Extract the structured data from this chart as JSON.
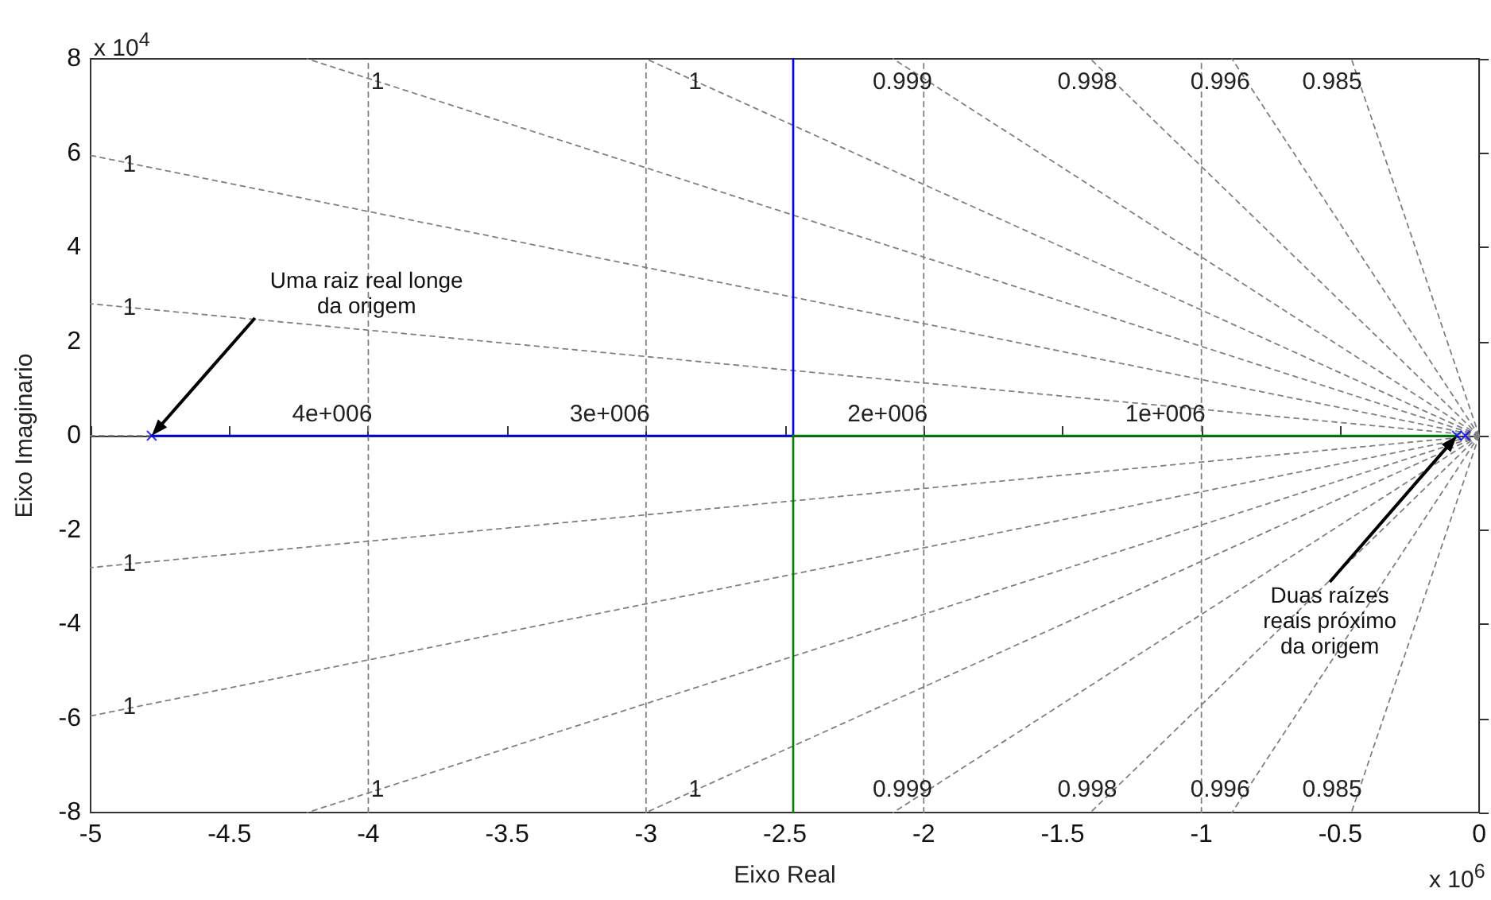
{
  "chart_data": {
    "type": "line",
    "xlabel": "Eixo Real",
    "ylabel": "Eixo Imaginario",
    "xlim": [
      -5,
      0
    ],
    "ylim": [
      -8,
      8
    ],
    "xticks": [
      -5,
      -4.5,
      -4,
      -3.5,
      -3,
      -2.5,
      -2,
      -1.5,
      -1,
      -0.5,
      0
    ],
    "yticks": [
      -8,
      -6,
      -4,
      -2,
      0,
      2,
      4,
      6,
      8
    ],
    "series": [
      {
        "color": "#808080",
        "line_style": "dashed",
        "x": [
          -4.78,
          -5
        ],
        "values": [
          0,
          0
        ]
      },
      {
        "color": "#808080",
        "line_style": "dashed",
        "x": [
          0,
          -5
        ],
        "values": [
          0,
          5.95
        ]
      },
      {
        "color": "#808080",
        "line_style": "dashed",
        "x": [
          0,
          -5
        ],
        "values": [
          0,
          2.8
        ]
      },
      {
        "color": "#808080",
        "line_style": "dashed",
        "x": [
          0,
          -4.22
        ],
        "values": [
          0,
          8
        ]
      },
      {
        "color": "#808080",
        "line_style": "dashed",
        "x": [
          0,
          -3
        ],
        "values": [
          0,
          8
        ]
      },
      {
        "color": "#808080",
        "line_style": "dashed",
        "x": [
          0,
          -2.11
        ],
        "values": [
          0,
          8
        ]
      },
      {
        "color": "#808080",
        "line_style": "dashed",
        "x": [
          0,
          -1.4
        ],
        "values": [
          0,
          8
        ]
      },
      {
        "color": "#808080",
        "line_style": "dashed",
        "x": [
          0,
          -0.89
        ],
        "values": [
          0,
          8
        ]
      },
      {
        "color": "#808080",
        "line_style": "dashed",
        "x": [
          0,
          -0.46
        ],
        "values": [
          0,
          8
        ]
      },
      {
        "color": "#808080",
        "line_style": "dashed",
        "x": [
          0,
          -5
        ],
        "values": [
          0,
          -5.95
        ]
      },
      {
        "color": "#808080",
        "line_style": "dashed",
        "x": [
          0,
          -5
        ],
        "values": [
          0,
          -2.8
        ]
      },
      {
        "color": "#808080",
        "line_style": "dashed",
        "x": [
          0,
          -4.22
        ],
        "values": [
          0,
          -8
        ]
      },
      {
        "color": "#808080",
        "line_style": "dashed",
        "x": [
          0,
          -3
        ],
        "values": [
          0,
          -8
        ]
      },
      {
        "color": "#808080",
        "line_style": "dashed",
        "x": [
          0,
          -2.11
        ],
        "values": [
          0,
          -8
        ]
      },
      {
        "color": "#808080",
        "line_style": "dashed",
        "x": [
          0,
          -1.4
        ],
        "values": [
          0,
          -8
        ]
      },
      {
        "color": "#808080",
        "line_style": "dashed",
        "x": [
          0,
          -0.89
        ],
        "values": [
          0,
          -8
        ]
      },
      {
        "color": "#808080",
        "line_style": "dashed",
        "x": [
          0,
          -0.46
        ],
        "values": [
          0,
          -8
        ]
      },
      {
        "color": "#808080",
        "line_style": "dashed",
        "x": [
          -4,
          -4
        ],
        "values": [
          -8,
          8
        ]
      },
      {
        "color": "#808080",
        "line_style": "dashed",
        "x": [
          -3,
          -3
        ],
        "values": [
          -8,
          8
        ]
      },
      {
        "color": "#808080",
        "line_style": "dashed",
        "x": [
          -2,
          -2
        ],
        "values": [
          -8,
          8
        ]
      },
      {
        "color": "#808080",
        "line_style": "dashed",
        "x": [
          -1,
          -1
        ],
        "values": [
          -8,
          8
        ]
      },
      {
        "color": "#0000ff",
        "line_style": "solid",
        "x": [
          -4.78,
          -2.47,
          -2.47
        ],
        "values": [
          0,
          0,
          8
        ]
      },
      {
        "color": "#008000",
        "line_style": "solid",
        "x": [
          -0.08,
          -2.47,
          -2.47
        ],
        "values": [
          0,
          0,
          -8
        ]
      },
      {
        "type": "scatter",
        "color": "#0000ff",
        "marker": "cross",
        "x": [
          -4.78,
          -0.08,
          -0.05
        ],
        "values": [
          0,
          0,
          0
        ]
      }
    ],
    "annotations": [
      "x 10$^{6}$",
      "x 10$^{4}$",
      {
        "text": "Uma raiz real longe\nda origem",
        "x": -4.78,
        "y": 0
      },
      {
        "text": "Duas raízes\nreais próximo\nda origem",
        "x": -0.08,
        "y": 0
      },
      {
        "text": "1",
        "x": -3.956,
        "y": 7.5
      },
      {
        "text": "1",
        "x": -2.8125,
        "y": 7.5
      },
      {
        "text": "0.999",
        "x": -1.978,
        "y": 7.5
      },
      {
        "text": "0.998",
        "x": -1.3125,
        "y": 7.5
      },
      {
        "text": "0.996",
        "x": -0.834,
        "y": 7.5
      },
      {
        "text": "0.985",
        "x": -0.431,
        "y": 7.5
      },
      {
        "text": "1",
        "x": -4.85,
        "y": 5.771
      },
      {
        "text": "1",
        "x": -4.85,
        "y": 2.716
      },
      {
        "text": "1",
        "x": -4.85,
        "y": -2.716
      },
      {
        "text": "1",
        "x": -4.85,
        "y": -5.771
      },
      {
        "text": "1",
        "x": -3.956,
        "y": -7.5
      },
      {
        "text": "1",
        "x": -2.8125,
        "y": -7.5
      },
      {
        "text": "0.999",
        "x": -1.978,
        "y": -7.5
      },
      {
        "text": "0.998",
        "x": -1.3125,
        "y": -7.5
      },
      {
        "text": "0.996",
        "x": -0.834,
        "y": -7.5
      },
      {
        "text": "0.985",
        "x": -0.431,
        "y": -7.5
      },
      {
        "text": "4e+006",
        "x": -4,
        "y": 0.45
      },
      {
        "text": "3e+006",
        "x": -3,
        "y": 0.45
      },
      {
        "text": "2e+006",
        "x": -2,
        "y": 0.45
      },
      {
        "text": "1e+006",
        "x": -1,
        "y": 0.45
      }
    ]
  }
}
